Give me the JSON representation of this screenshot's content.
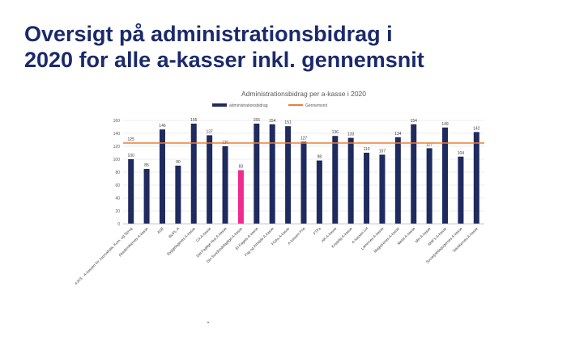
{
  "slide": {
    "title_line1": "Oversigt på administrationsbidrag i",
    "title_line2": "2020 for alle a-kasser inkl. gennemsnit"
  },
  "colors": {
    "bar": "#1f2a5e",
    "highlight": "#ee2b8f",
    "average": "#ed7d31",
    "title": "#1b2a6b"
  },
  "chart_data": {
    "type": "bar",
    "title": "Administrationsbidrag per a-kasse i 2020",
    "legend": [
      "administrationsbidrag",
      "Gennemsnit"
    ],
    "legend_position": "top",
    "ylim": [
      0,
      160
    ],
    "yticks": [
      0,
      20,
      40,
      60,
      80,
      100,
      120,
      140,
      160
    ],
    "grid": true,
    "average": 125,
    "categories": [
      "AJKS - A-kassen for Journalistik, Kom. og Sprog",
      "Akademikernes A-kasse",
      "ASE",
      "BUPL-A",
      "Byggefagenes A-kasse",
      "CA A-kasse",
      "Det Faglige Hus A-kasse",
      "Din Sundhedsfaglige A-kasse",
      "El-Fagets A-kasse",
      "Fag og Arbejde A-kasse",
      "FOAs A-kasse",
      "A-kassen Frie",
      "FTFa",
      "HK A-kasse",
      "Kristelig A-kasse",
      "A-kassen LH",
      "Lærernes A-kasse",
      "Magistrenes A-kasse",
      "Metal A-kasse",
      "Min A-kasse",
      "NNF's A-kasse",
      "Socialpædagogernes A-kasse",
      "Teknikernes A-kasse"
    ],
    "values": [
      100,
      85,
      146,
      90,
      155,
      137,
      120,
      83,
      155,
      154,
      151,
      127,
      98,
      136,
      133,
      110,
      107,
      134,
      154,
      117,
      149,
      104,
      142
    ],
    "highlight_index": 7
  }
}
